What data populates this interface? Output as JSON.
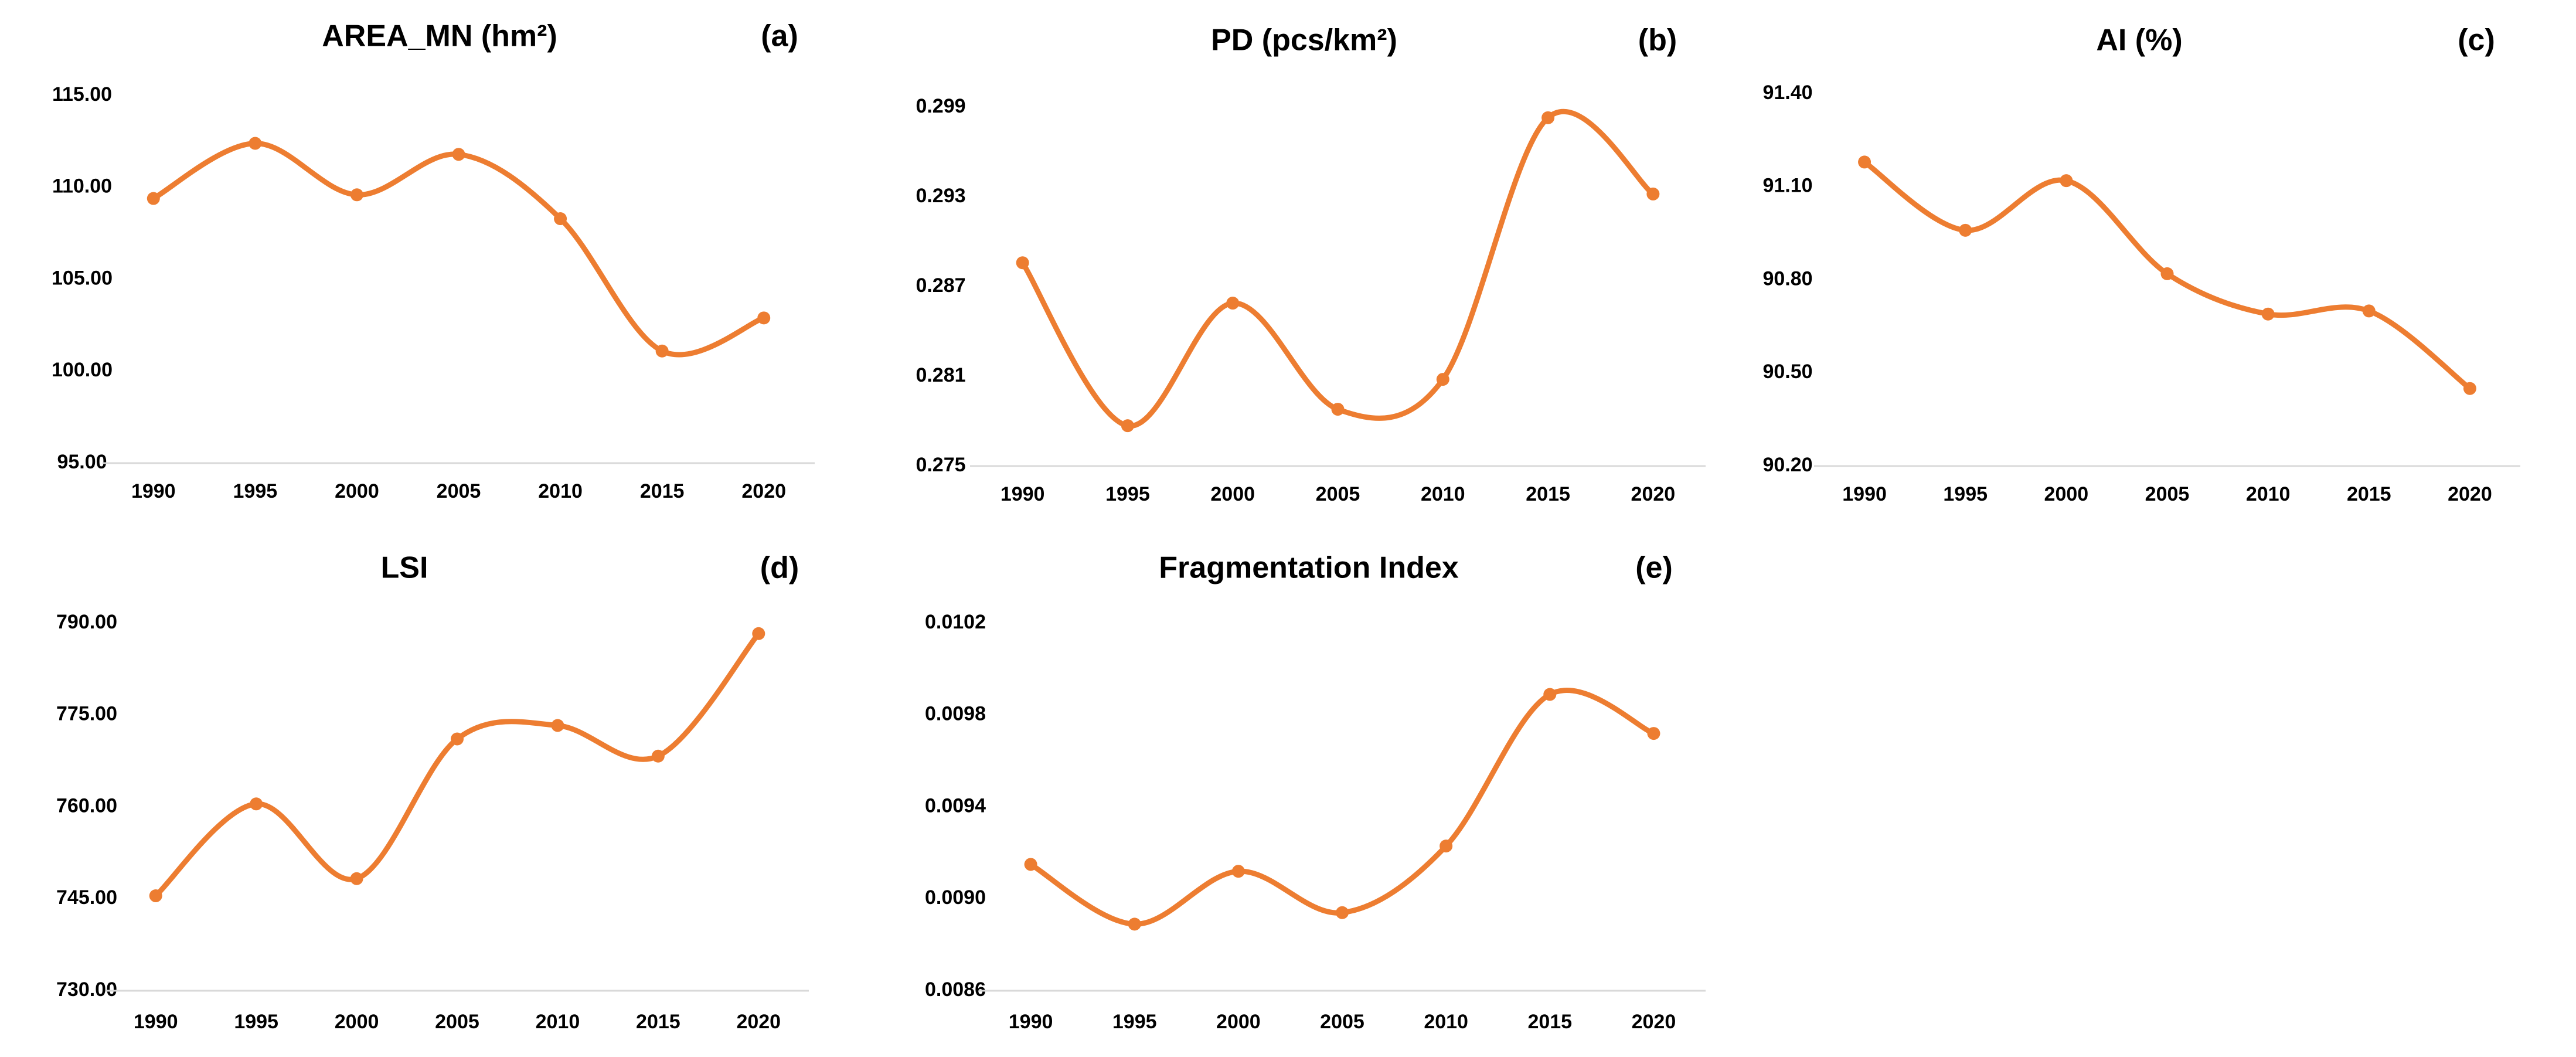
{
  "style": {
    "line_color": "#ed7d31",
    "marker_color": "#ed7d31"
  },
  "chart_data": [
    {
      "id": "a",
      "type": "line",
      "title": "AREA_MN  (hm²)",
      "panel_label": "(a)",
      "categories": [
        "1990",
        "1995",
        "2000",
        "2005",
        "2010",
        "2015",
        "2020"
      ],
      "values": [
        109.4,
        112.4,
        109.6,
        111.8,
        108.3,
        101.1,
        102.9
      ],
      "ylim": [
        95,
        115
      ],
      "yticks": [
        "95.00",
        "100.00",
        "105.00",
        "110.00",
        "115.00"
      ]
    },
    {
      "id": "b",
      "type": "line",
      "title": "PD  (pcs/km²)",
      "panel_label": "(b)",
      "categories": [
        "1990",
        "1995",
        "2000",
        "2005",
        "2010",
        "2015",
        "2020"
      ],
      "values": [
        0.2886,
        0.2777,
        0.2859,
        0.2788,
        0.2808,
        0.2983,
        0.2932
      ],
      "ylim": [
        0.275,
        0.299
      ],
      "yticks": [
        "0.275",
        "0.281",
        "0.287",
        "0.293",
        "0.299"
      ]
    },
    {
      "id": "c",
      "type": "line",
      "title": "AI  (%)",
      "panel_label": "(c)",
      "categories": [
        "1990",
        "1995",
        "2000",
        "2005",
        "2010",
        "2015",
        "2020"
      ],
      "values": [
        91.18,
        90.96,
        91.12,
        90.82,
        90.69,
        90.7,
        90.45
      ],
      "ylim": [
        90.2,
        91.4
      ],
      "yticks": [
        "90.20",
        "90.50",
        "90.80",
        "91.10",
        "91.40"
      ]
    },
    {
      "id": "d",
      "type": "line",
      "title": "LSI",
      "panel_label": "(d)",
      "categories": [
        "1990",
        "1995",
        "2000",
        "2005",
        "2010",
        "2015",
        "2020"
      ],
      "values": [
        745.5,
        760.5,
        748.3,
        771.1,
        773.3,
        768.3,
        788.3
      ],
      "ylim": [
        730,
        790
      ],
      "yticks": [
        "730.00",
        "745.00",
        "760.00",
        "775.00",
        "790.00"
      ]
    },
    {
      "id": "e",
      "type": "line",
      "title": "Fragmentation Index",
      "panel_label": "(e)",
      "categories": [
        "1990",
        "1995",
        "2000",
        "2005",
        "2010",
        "2015",
        "2020"
      ],
      "values": [
        0.00915,
        0.00889,
        0.00912,
        0.00894,
        0.00923,
        0.00989,
        0.00972
      ],
      "ylim": [
        0.0086,
        0.0102
      ],
      "yticks": [
        "0.0086",
        "0.0090",
        "0.0094",
        "0.0098",
        "0.0102"
      ]
    }
  ]
}
